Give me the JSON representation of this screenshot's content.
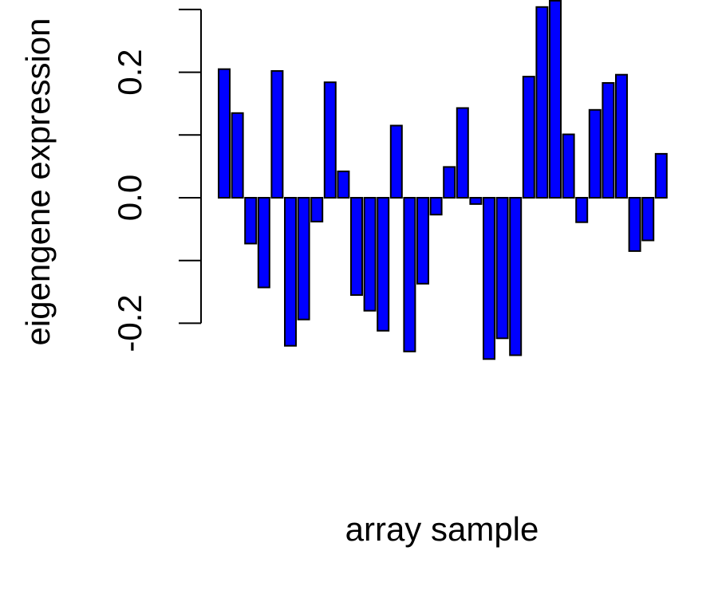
{
  "chart_data": {
    "type": "bar",
    "xlabel": "array sample",
    "ylabel": "eigengene expression",
    "ylim": [
      -0.22,
      0.31
    ],
    "yticks": [
      -0.2,
      -0.1,
      0.0,
      0.1,
      0.2,
      0.3
    ],
    "ytick_labels": [
      "-0.2",
      "",
      "0.0",
      "",
      "0.2",
      ""
    ],
    "bar_color": "#0000ff",
    "bar_edge_color": "#000000",
    "values": [
      0.205,
      0.135,
      -0.073,
      -0.143,
      0.202,
      -0.236,
      -0.194,
      -0.038,
      0.184,
      0.042,
      -0.155,
      -0.18,
      -0.212,
      0.115,
      -0.245,
      -0.137,
      -0.027,
      0.049,
      0.143,
      -0.01,
      -0.257,
      -0.224,
      -0.251,
      0.193,
      0.304,
      0.314,
      0.101,
      -0.039,
      0.14,
      0.183,
      0.196,
      -0.085,
      -0.068,
      0.07
    ]
  }
}
